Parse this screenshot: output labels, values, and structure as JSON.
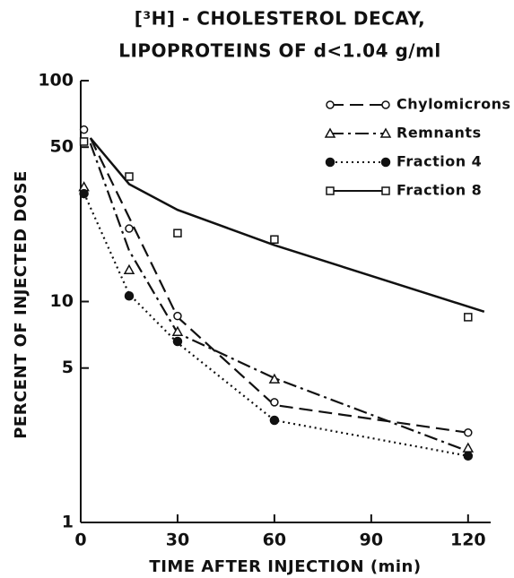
{
  "chart_data": {
    "type": "line",
    "title": [
      "[³H] - CHOLESTEROL DECAY,",
      "LIPOPROTEINS OF d<1.04 g/ml"
    ],
    "xlabel": "TIME AFTER INJECTION (min)",
    "ylabel": "PERCENT OF INJECTED DOSE",
    "x": [
      1,
      15,
      30,
      60,
      120
    ],
    "xlim": [
      0,
      127
    ],
    "xticks": [
      0,
      30,
      60,
      90,
      120
    ],
    "ylim": [
      1,
      100
    ],
    "yticks": [
      1,
      5,
      10,
      50,
      100
    ],
    "yscale": "log",
    "legend": "upper right",
    "series": [
      {
        "name": "Chylomicrons",
        "color": "#111111",
        "marker": "circle-open",
        "line_style": "dashed",
        "values": [
          60,
          21.4,
          8.6,
          3.5,
          2.55
        ],
        "curve_x": [
          3,
          15,
          30,
          60,
          120
        ],
        "curve": [
          55,
          24,
          8.5,
          3.4,
          2.55
        ]
      },
      {
        "name": "Remnants",
        "color": "#111111",
        "marker": "triangle-open",
        "line_style": "dashdot",
        "values": [
          33,
          13.9,
          7.3,
          4.45,
          2.17
        ],
        "curve_x": [
          3,
          15,
          30,
          60,
          120
        ],
        "curve": [
          52,
          17,
          7.2,
          4.5,
          2.1
        ]
      },
      {
        "name": "Fraction 4",
        "color": "#111111",
        "marker": "circle-filled",
        "line_style": "dotted",
        "values": [
          30.8,
          10.6,
          6.6,
          2.9,
          2.0
        ],
        "curve_x": [
          1,
          15,
          30,
          60,
          120
        ],
        "curve": [
          31,
          10.8,
          6.5,
          2.9,
          2.0
        ]
      },
      {
        "name": "Fraction 8",
        "color": "#111111",
        "marker": "square-open",
        "line_style": "solid",
        "values": [
          53,
          36.8,
          20.4,
          19.1,
          8.5
        ],
        "curve_x": [
          3,
          15,
          30,
          60,
          125
        ],
        "curve": [
          55,
          34,
          26,
          18,
          9
        ]
      }
    ]
  }
}
